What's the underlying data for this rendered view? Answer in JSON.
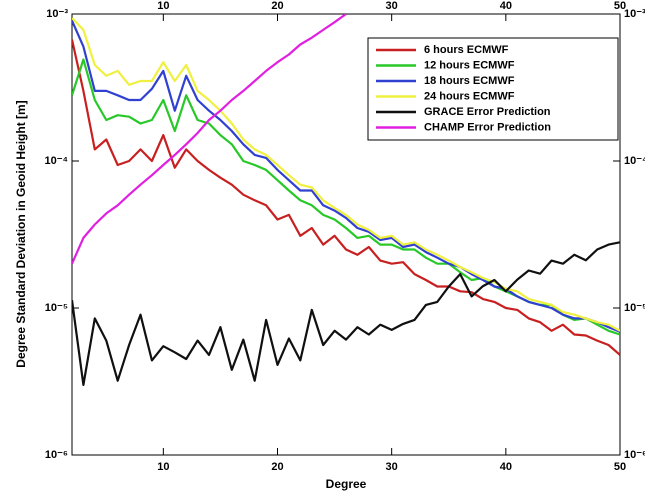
{
  "chart_data": {
    "type": "line",
    "x_label": "Degree",
    "y_label": "Degree Standard Deviation in Geoid Height [m]",
    "xlim": [
      2,
      50
    ],
    "xticks": [
      10,
      20,
      30,
      40,
      50
    ],
    "ylim": [
      1e-06,
      0.001
    ],
    "log_y": true,
    "yticks": [
      {
        "value": 1e-06,
        "label": "10⁻⁶"
      },
      {
        "value": 1e-05,
        "label": "10⁻⁵"
      },
      {
        "value": 0.0001,
        "label": "10⁻⁴"
      },
      {
        "value": 0.001,
        "label": "10⁻³"
      }
    ],
    "legend": "upper right",
    "x": [
      2,
      3,
      4,
      5,
      6,
      7,
      8,
      9,
      10,
      11,
      12,
      13,
      14,
      15,
      16,
      17,
      18,
      19,
      20,
      21,
      22,
      23,
      24,
      25,
      26,
      27,
      28,
      29,
      30,
      31,
      32,
      33,
      34,
      35,
      36,
      37,
      38,
      39,
      40,
      41,
      42,
      43,
      44,
      45,
      46,
      47,
      48,
      49,
      50
    ],
    "series": [
      {
        "name": "6 hours ECMWF",
        "color": "#c82020",
        "values": [
          0.00067,
          0.0003,
          0.00012,
          0.00014,
          9.4e-05,
          0.0001,
          0.00012,
          0.0001,
          0.00015,
          9e-05,
          0.00012,
          0.0001,
          8.7e-05,
          7.7e-05,
          6.9e-05,
          5.9e-05,
          5.4e-05,
          5e-05,
          4e-05,
          4.3e-05,
          3.1e-05,
          3.5e-05,
          2.7e-05,
          3.1e-05,
          2.5e-05,
          2.3e-05,
          2.6e-05,
          2.1e-05,
          2e-05,
          2.05e-05,
          1.7e-05,
          1.55e-05,
          1.4e-05,
          1.4e-05,
          1.3e-05,
          1.28e-05,
          1.15e-05,
          1.1e-05,
          1e-05,
          9.7e-06,
          8.5e-06,
          8e-06,
          7e-06,
          7.7e-06,
          6.6e-06,
          6.5e-06,
          6e-06,
          5.6e-06,
          4.8e-06
        ]
      },
      {
        "name": "12 hours ECMWF",
        "color": "#28c828",
        "values": [
          0.00028,
          0.00049,
          0.00026,
          0.00019,
          0.000205,
          0.0002,
          0.00018,
          0.00019,
          0.00026,
          0.00016,
          0.00028,
          0.00019,
          0.00018,
          0.00015,
          0.00013,
          0.0001,
          9.4e-05,
          8.7e-05,
          7.4e-05,
          6.3e-05,
          5.4e-05,
          5e-05,
          4.3e-05,
          4e-05,
          3.5e-05,
          3e-05,
          3.1e-05,
          2.7e-05,
          2.7e-05,
          2.5e-05,
          2.5e-05,
          2.2e-05,
          2e-05,
          2e-05,
          1.75e-05,
          1.55e-05,
          1.6e-05,
          1.4e-05,
          1.3e-05,
          1.2e-05,
          1.1e-05,
          1.05e-05,
          1.05e-05,
          9e-06,
          8.3e-06,
          8.5e-06,
          7.7e-06,
          7e-06,
          6.6e-06
        ]
      },
      {
        "name": "18 hours ECMWF",
        "color": "#3040d0",
        "values": [
          0.0009,
          0.0006,
          0.0003,
          0.0003,
          0.00028,
          0.00026,
          0.00026,
          0.00031,
          0.00041,
          0.00022,
          0.00038,
          0.00026,
          0.00022,
          0.00019,
          0.00016,
          0.00013,
          0.00011,
          0.000105,
          8.7e-05,
          7.4e-05,
          6.3e-05,
          6.3e-05,
          5e-05,
          4.6e-05,
          4.1e-05,
          3.5e-05,
          3.3e-05,
          2.9e-05,
          3e-05,
          2.6e-05,
          2.7e-05,
          2.4e-05,
          2.2e-05,
          2e-05,
          1.9e-05,
          1.7e-05,
          1.55e-05,
          1.4e-05,
          1.35e-05,
          1.2e-05,
          1.1e-05,
          1.05e-05,
          1e-05,
          9e-06,
          8.5e-06,
          8.5e-06,
          8e-06,
          7.4e-06,
          6.9e-06
        ]
      },
      {
        "name": "24 hours ECMWF",
        "color": "#f0f040",
        "values": [
          0.00094,
          0.00078,
          0.00045,
          0.00038,
          0.00041,
          0.00033,
          0.00035,
          0.00035,
          0.00047,
          0.00035,
          0.00045,
          0.0003,
          0.00026,
          0.00022,
          0.00018,
          0.00014,
          0.00012,
          0.00011,
          9.4e-05,
          8e-05,
          6.9e-05,
          6.6e-05,
          5.4e-05,
          4.8e-05,
          4.3e-05,
          3.7e-05,
          3.4e-05,
          3e-05,
          3.1e-05,
          2.7e-05,
          2.8e-05,
          2.5e-05,
          2.3e-05,
          2.1e-05,
          1.9e-05,
          1.75e-05,
          1.6e-05,
          1.5e-05,
          1.35e-05,
          1.3e-05,
          1.15e-05,
          1.1e-05,
          1.05e-05,
          9.4e-06,
          9e-06,
          8.5e-06,
          8e-06,
          7.7e-06,
          7e-06
        ]
      },
      {
        "name": "GRACE Error Prediction",
        "color": "#101010",
        "values": [
          1.13e-05,
          3e-06,
          8.5e-06,
          6e-06,
          3.2e-06,
          5.6e-06,
          9e-06,
          4.4e-06,
          5.5e-06,
          5e-06,
          4.5e-06,
          6e-06,
          4.8e-06,
          7.4e-06,
          3.8e-06,
          6.1e-06,
          3.2e-06,
          8.3e-06,
          4.1e-06,
          6.2e-06,
          4.4e-06,
          9.7e-06,
          5.6e-06,
          7e-06,
          6.1e-06,
          7.4e-06,
          6.6e-06,
          7.7e-06,
          7.1e-06,
          7.8e-06,
          8.3e-06,
          1.05e-05,
          1.1e-05,
          1.4e-05,
          1.7e-05,
          1.2e-05,
          1.41e-05,
          1.55e-05,
          1.3e-05,
          1.56e-05,
          1.8e-05,
          1.71e-05,
          2.1e-05,
          2e-05,
          2.3e-05,
          2.11e-05,
          2.5e-05,
          2.7e-05,
          2.8e-05
        ]
      },
      {
        "name": "CHAMP Error Prediction",
        "color": "#e020e0",
        "values": [
          2e-05,
          3e-05,
          3.7e-05,
          4.4e-05,
          5e-05,
          5.9e-05,
          6.9e-05,
          8e-05,
          9.4e-05,
          0.00011,
          0.00013,
          0.000155,
          0.00019,
          0.00022,
          0.00026,
          0.0003,
          0.00035,
          0.00041,
          0.00047,
          0.00053,
          0.00062,
          0.00069,
          0.00078,
          0.00088,
          0.001,
          null,
          null,
          null,
          null,
          null,
          null,
          null,
          null,
          null,
          null,
          null,
          null,
          null,
          null,
          null,
          null,
          null,
          null,
          null,
          null,
          null,
          null,
          null,
          null
        ]
      }
    ]
  }
}
